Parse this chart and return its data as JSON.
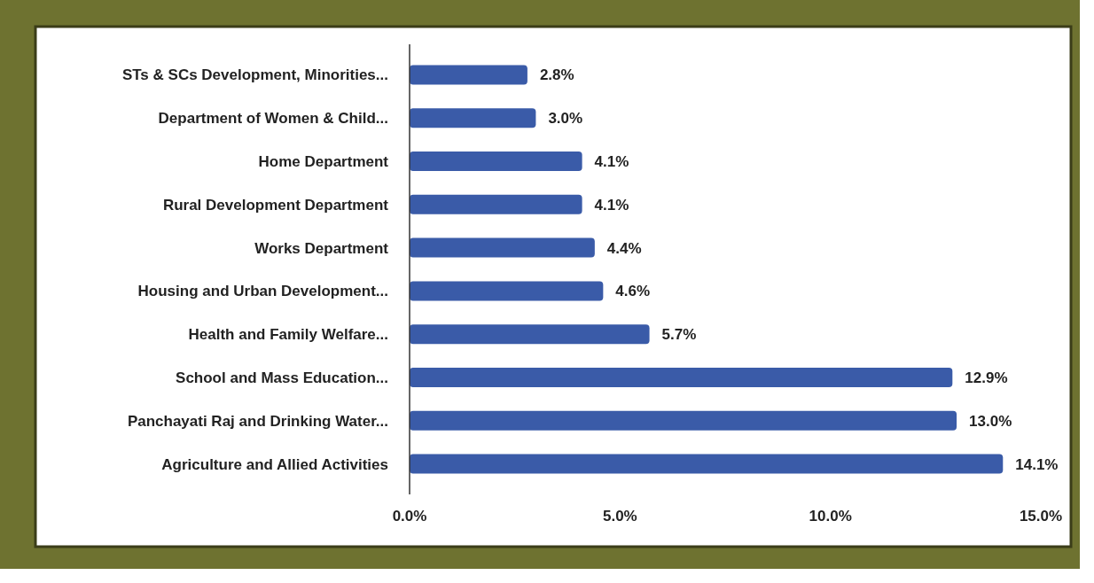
{
  "chart_data": {
    "type": "bar",
    "orientation": "horizontal",
    "categories": [
      "STs & SCs Development, Minorities...",
      "Department of Women & Child...",
      "Home Department",
      "Rural Development Department",
      "Works Department",
      "Housing and Urban Development...",
      "Health and Family Welfare...",
      "School and Mass Education...",
      "Panchayati Raj and Drinking Water...",
      "Agriculture and Allied Activities"
    ],
    "values": [
      2.8,
      3.0,
      4.1,
      4.1,
      4.4,
      4.6,
      5.7,
      12.9,
      13.0,
      14.1
    ],
    "value_labels": [
      "2.8%",
      "3.0%",
      "4.1%",
      "4.1%",
      "4.4%",
      "4.6%",
      "5.7%",
      "12.9%",
      "13.0%",
      "14.1%"
    ],
    "color": "#3a5ba8",
    "xlim": [
      0,
      15
    ],
    "xticks": [
      {
        "value": 0,
        "label": "0.0%"
      },
      {
        "value": 5,
        "label": "5.0%"
      },
      {
        "value": 10,
        "label": "10.0%"
      },
      {
        "value": 15,
        "label": "15.0%"
      }
    ],
    "grid": false
  }
}
